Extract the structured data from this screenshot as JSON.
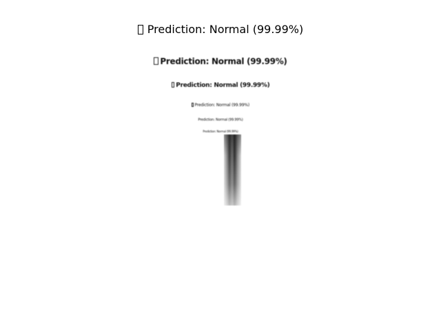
{
  "title": {
    "icon": "missing-glyph-box",
    "text": "Prediction: Normal (99.99%)"
  },
  "recursive_copies": [
    "Prediction: Normal (99.99%)",
    "Prediction: Normal (99.99%)",
    "Prediction: Normal (99.99%)",
    "Prediction: Normal (99.99%)",
    "Prediction: Normal (99.99%)"
  ],
  "image": {
    "kind": "chest x-ray thumbnail, grayscale"
  }
}
